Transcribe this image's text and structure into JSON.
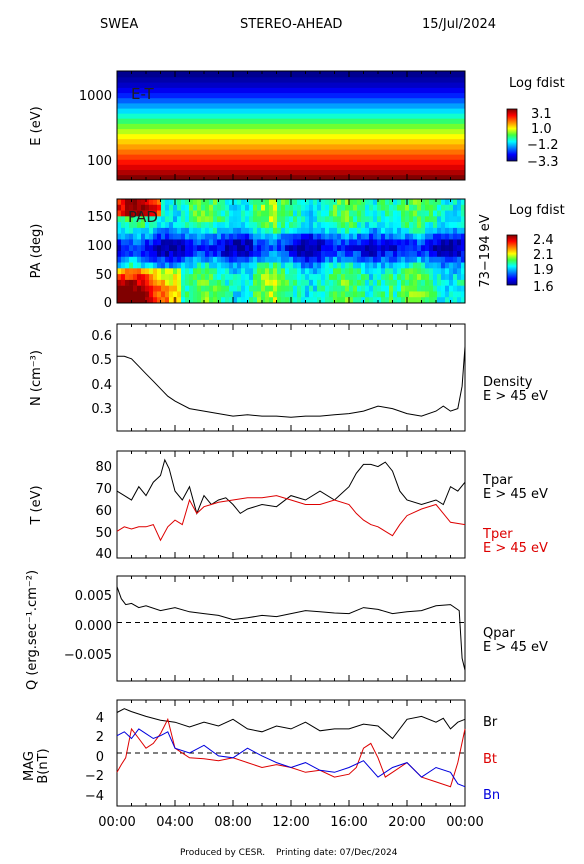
{
  "header": {
    "instrument": "SWEA",
    "spacecraft": "STEREO-AHEAD",
    "date": "15/Jul/2024"
  },
  "footer": {
    "produced": "Produced by CESR.",
    "printing": "Printing date: 07/Dec/2024"
  },
  "time_axis": {
    "ticks": [
      "00:00",
      "04:00",
      "08:00",
      "12:00",
      "16:00",
      "20:00",
      "00:00"
    ],
    "range_hours": [
      0,
      24
    ]
  },
  "chart_data": [
    {
      "type": "heatmap",
      "panel_label": "E-T",
      "ylabel": "E (eV)",
      "yscale": "log",
      "ylim": [
        50,
        2000
      ],
      "yticks": [
        "1000",
        "100"
      ],
      "colorbar": {
        "title": "Log fdist",
        "ticks": [
          "3.1",
          "1.0",
          "−1.2",
          "−3.3"
        ],
        "range": [
          -3.3,
          3.1
        ]
      },
      "rows_energy_eV": [
        55,
        65,
        78,
        92,
        110,
        130,
        155,
        185,
        220,
        260,
        310,
        370,
        440,
        520,
        620,
        740,
        880,
        1050,
        1250,
        1500,
        1780
      ],
      "rows_log_fdist": [
        3.1,
        2.8,
        2.5,
        2.2,
        1.9,
        1.6,
        1.3,
        1.0,
        0.7,
        0.4,
        0.1,
        -0.3,
        -0.7,
        -1.1,
        -1.5,
        -1.9,
        -2.3,
        -2.6,
        -2.9,
        -3.1,
        -3.3
      ]
    },
    {
      "type": "heatmap",
      "panel_label": "PAD",
      "ylabel": "PA (deg)",
      "ylim": [
        0,
        180
      ],
      "yticks": [
        "150",
        "100",
        "50",
        "0"
      ],
      "right_label": "73−194 eV",
      "colorbar": {
        "title": "Log fdist",
        "ticks": [
          "2.4",
          "2.1",
          "1.9",
          "1.6"
        ],
        "range": [
          1.6,
          2.4
        ]
      }
    },
    {
      "type": "line",
      "ylabel": "N (cm⁻³)",
      "ylim": [
        0.22,
        0.65
      ],
      "yticks": [
        "0.6",
        "0.5",
        "0.4",
        "0.3"
      ],
      "series": [
        {
          "name": "Density",
          "sub": "E > 45 eV",
          "color": "#000000",
          "x": [
            0,
            0.5,
            1,
            1.5,
            2,
            2.5,
            3,
            3.5,
            4,
            5,
            6,
            7,
            8,
            9,
            10,
            11,
            12,
            13,
            14,
            15,
            16,
            17,
            18,
            19,
            20,
            21,
            22,
            22.5,
            23,
            23.5,
            23.8,
            24
          ],
          "y": [
            0.52,
            0.52,
            0.51,
            0.48,
            0.45,
            0.42,
            0.39,
            0.36,
            0.34,
            0.31,
            0.3,
            0.29,
            0.28,
            0.285,
            0.28,
            0.28,
            0.275,
            0.28,
            0.28,
            0.285,
            0.29,
            0.3,
            0.32,
            0.31,
            0.29,
            0.28,
            0.3,
            0.32,
            0.3,
            0.31,
            0.4,
            0.56
          ]
        }
      ]
    },
    {
      "type": "line",
      "ylabel": "T (eV)",
      "ylim": [
        38,
        86
      ],
      "yticks": [
        "80",
        "70",
        "60",
        "50",
        "40"
      ],
      "series": [
        {
          "name": "Tpar",
          "sub": "E > 45 eV",
          "color": "#000000",
          "x": [
            0,
            0.5,
            1,
            1.5,
            2,
            2.5,
            3,
            3.3,
            3.6,
            4,
            4.5,
            5,
            5.5,
            6,
            6.5,
            7,
            7.5,
            8,
            8.5,
            9,
            10,
            11,
            12,
            13,
            14,
            15,
            16,
            16.5,
            17,
            17.5,
            18,
            18.5,
            19,
            19.5,
            20,
            21,
            22,
            22.5,
            23,
            23.5,
            24
          ],
          "y": [
            68,
            66,
            64,
            70,
            66,
            72,
            75,
            82,
            78,
            68,
            64,
            70,
            58,
            66,
            62,
            64,
            65,
            62,
            58,
            60,
            62,
            61,
            66,
            64,
            68,
            64,
            70,
            76,
            80,
            80,
            79,
            81,
            77,
            68,
            64,
            62,
            64,
            62,
            70,
            68,
            72
          ]
        },
        {
          "name": "Tper",
          "sub": "E > 45 eV",
          "color": "#dd0000",
          "x": [
            0,
            0.5,
            1,
            1.5,
            2,
            2.5,
            3,
            3.5,
            4,
            4.5,
            5,
            5.5,
            6,
            6.5,
            7,
            8,
            9,
            10,
            11,
            12,
            13,
            14,
            15,
            16,
            16.5,
            17,
            17.5,
            18,
            18.5,
            19,
            19.5,
            20,
            21,
            22,
            23,
            24
          ],
          "y": [
            50,
            52,
            51,
            52,
            52,
            53,
            46,
            52,
            55,
            53,
            64,
            58,
            61,
            62,
            63,
            64,
            65,
            65,
            66,
            64,
            62,
            62,
            64,
            62,
            58,
            55,
            53,
            52,
            50,
            48,
            53,
            57,
            60,
            62,
            54,
            53
          ]
        }
      ]
    },
    {
      "type": "line",
      "ylabel": "Q (erg.sec⁻¹.cm⁻²)",
      "ylim": [
        -0.0098,
        0.0078
      ],
      "yticks": [
        "0.005",
        "0.000",
        "−0.005"
      ],
      "reference_line": 0,
      "series": [
        {
          "name": "Qpar",
          "sub": "E > 45 eV",
          "color": "#000000",
          "x": [
            0,
            0.3,
            0.6,
            1,
            1.5,
            2,
            3,
            4,
            5,
            6,
            7,
            8,
            9,
            10,
            11,
            12,
            13,
            14,
            15,
            16,
            17,
            18,
            19,
            20,
            21,
            22,
            23,
            23.6,
            23.8,
            24
          ],
          "y": [
            0.006,
            0.004,
            0.003,
            0.0032,
            0.0025,
            0.0028,
            0.002,
            0.0025,
            0.0018,
            0.0015,
            0.0012,
            0.0005,
            0.0008,
            0.0012,
            0.001,
            0.0015,
            0.002,
            0.0018,
            0.0016,
            0.0015,
            0.0025,
            0.0022,
            0.0015,
            0.0018,
            0.002,
            0.0028,
            0.003,
            0.002,
            -0.006,
            -0.008
          ]
        }
      ]
    },
    {
      "type": "line",
      "ylabel": "MAG",
      "ylabel2": "B(nT)",
      "ylim": [
        -5.5,
        5.5
      ],
      "yticks": [
        "4",
        "2",
        "0",
        "−2",
        "−4"
      ],
      "reference_line": 0,
      "series": [
        {
          "name": "Br",
          "color": "#000000",
          "x": [
            0,
            0.5,
            1,
            2,
            3,
            4,
            5,
            6,
            7,
            8,
            9,
            10,
            11,
            12,
            13,
            14,
            15,
            16,
            17,
            18,
            19,
            20,
            21,
            22,
            22.5,
            23,
            23.5,
            24
          ],
          "y": [
            4.2,
            4.6,
            4.3,
            3.8,
            3.4,
            3.2,
            2.7,
            3.2,
            2.8,
            3.5,
            2.5,
            2.2,
            2.8,
            2.5,
            3.2,
            2.3,
            2.5,
            2.5,
            3.0,
            2.8,
            1.5,
            3.5,
            3.8,
            3.2,
            3.6,
            2.5,
            3.2,
            3.5
          ]
        },
        {
          "name": "Bt",
          "color": "#dd0000",
          "x": [
            0,
            0.3,
            0.6,
            1,
            1.5,
            2,
            2.5,
            3,
            3.5,
            4,
            5,
            6,
            7,
            8,
            9,
            10,
            11,
            12,
            13,
            14,
            15,
            16,
            16.5,
            17,
            17.5,
            18,
            18.5,
            19,
            20,
            21,
            22,
            23,
            23.5,
            24
          ],
          "y": [
            -2.0,
            -1.2,
            -0.5,
            2.5,
            1.5,
            0.5,
            1.0,
            2.0,
            3.5,
            0.5,
            -0.5,
            -0.6,
            -0.8,
            -0.5,
            -1.0,
            -1.5,
            -1.2,
            -1.5,
            -2.0,
            -1.8,
            -2.5,
            -2.2,
            -1.5,
            0.5,
            1.0,
            -0.5,
            -2.5,
            -2.0,
            -1.0,
            -2.5,
            -3.0,
            -3.5,
            -1.0,
            2.5
          ]
        },
        {
          "name": "Bn",
          "color": "#0000dd",
          "x": [
            0,
            0.5,
            1,
            1.5,
            2,
            2.5,
            3,
            3.5,
            4,
            5,
            6,
            7,
            8,
            9,
            10,
            11,
            12,
            13,
            14,
            15,
            16,
            17,
            18,
            19,
            20,
            21,
            22,
            23,
            23.5,
            24
          ],
          "y": [
            1.8,
            2.2,
            1.5,
            2.5,
            2.0,
            1.5,
            1.8,
            2.2,
            0.5,
            0.0,
            0.8,
            -0.3,
            -0.5,
            0.5,
            -0.3,
            -1.0,
            -1.5,
            -1.0,
            -1.8,
            -2.0,
            -1.5,
            -0.8,
            -2.5,
            -1.5,
            -1.0,
            -2.5,
            -1.5,
            -2.0,
            -3.2,
            -3.5
          ]
        }
      ]
    }
  ]
}
